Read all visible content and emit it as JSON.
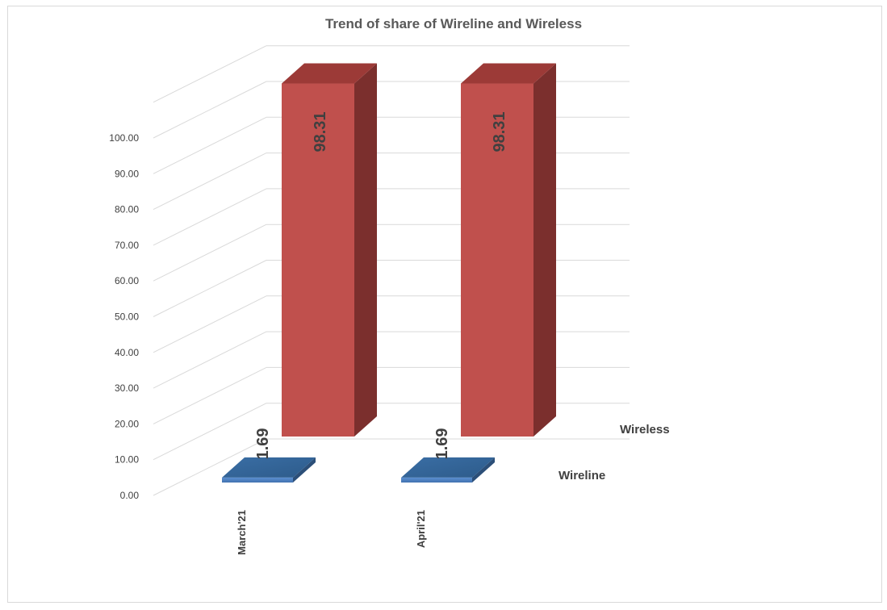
{
  "chart_data": {
    "type": "bar",
    "title": "Trend of  share of Wireline and Wireless",
    "categories": [
      "March'21",
      "April'21"
    ],
    "series": [
      {
        "name": "Wireline",
        "values": [
          1.69,
          1.69
        ],
        "labels": [
          "1.69",
          "1.69"
        ],
        "color": "#4f81bd"
      },
      {
        "name": "Wireless",
        "values": [
          98.31,
          98.31
        ],
        "labels": [
          "98.31",
          "98.31"
        ],
        "color": "#c0504d"
      }
    ],
    "ylim": [
      0,
      100
    ],
    "yticks": [
      "0.00",
      "10.00",
      "20.00",
      "30.00",
      "40.00",
      "50.00",
      "60.00",
      "70.00",
      "80.00",
      "90.00",
      "100.00"
    ],
    "grid": true,
    "xlabel": "",
    "ylabel": ""
  }
}
